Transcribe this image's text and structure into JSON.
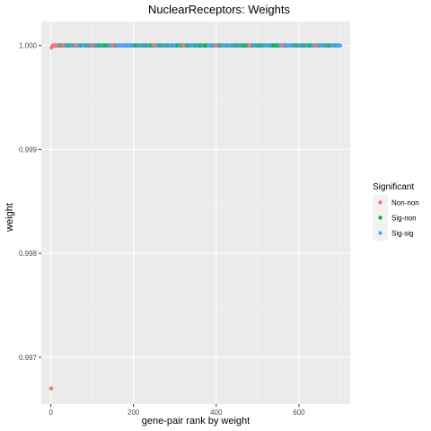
{
  "chart_data": {
    "type": "scatter",
    "title": "NuclearReceptors: Weights",
    "xlabel": "gene-pair rank by weight",
    "ylabel": "weight",
    "xlim": [
      -23,
      724
    ],
    "ylim": [
      0.99655,
      1.00023
    ],
    "x_ticks": [
      0,
      200,
      400,
      600
    ],
    "x_tick_labels": [
      "0",
      "200",
      "400",
      "600"
    ],
    "y_ticks": [
      0.997,
      0.998,
      0.999,
      1.0
    ],
    "y_tick_labels": [
      "0.997",
      "0.998",
      "0.999",
      "1.000"
    ],
    "grid": true,
    "legend": {
      "title": "Significant",
      "position": "right",
      "entries": [
        {
          "label": "Non-non",
          "color": "#F8766D"
        },
        {
          "label": "Sig-non",
          "color": "#00BA38"
        },
        {
          "label": "Sig-sig",
          "color": "#619CFF"
        }
      ]
    },
    "series": [
      {
        "name": "Non-non",
        "color": "#F8766D",
        "points": [
          [
            1,
            0.9967
          ],
          [
            2,
            0.99998
          ],
          [
            3,
            0.99999
          ],
          [
            5,
            1.0
          ],
          [
            8,
            1.0
          ],
          [
            15,
            1.0
          ],
          [
            30,
            1.0
          ],
          [
            60,
            1.0
          ],
          [
            100,
            1.0
          ],
          [
            150,
            1.0
          ],
          [
            250,
            1.0
          ],
          [
            320,
            1.0
          ],
          [
            400,
            1.0
          ],
          [
            480,
            1.0
          ],
          [
            560,
            1.0
          ],
          [
            640,
            1.0
          ]
        ]
      },
      {
        "name": "Sig-non",
        "color": "#00BA38",
        "range": [
          5,
          700
        ],
        "y": 1.0,
        "density": 0.35
      },
      {
        "name": "Sig-sig",
        "color": "#619CFF",
        "range": [
          5,
          700
        ],
        "y": 1.0,
        "density": 0.65
      }
    ]
  }
}
